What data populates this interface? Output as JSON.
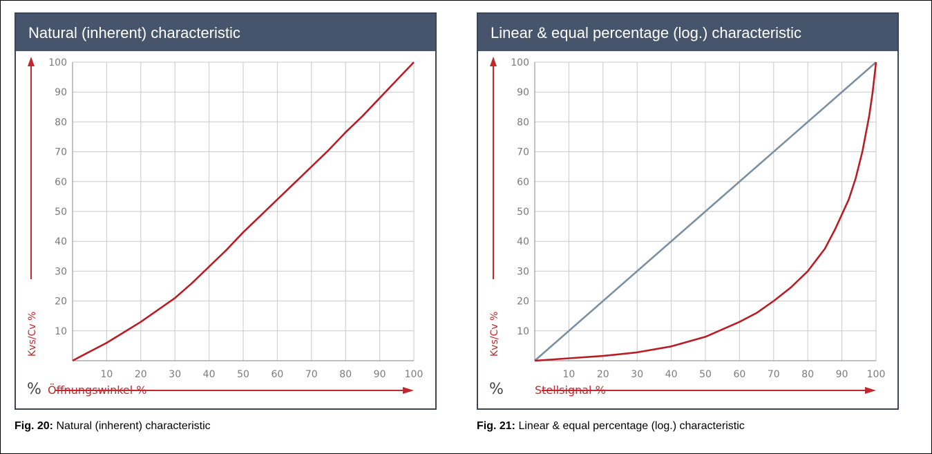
{
  "colors": {
    "header_bg": "#46556b",
    "header_text": "#ffffff",
    "panel_border": "#3a4658",
    "grid": "#c8c8c8",
    "axis_label": "#c0282d",
    "tick_text": "#7a7a7a",
    "curve_red": "#b91c24",
    "curve_grey": "#7a8fa0"
  },
  "figures": [
    {
      "header": "Natural (inherent) characteristic",
      "caption_label": "Fig. 20:",
      "caption_text": " Natural (inherent) characteristic",
      "percent_sign": "%",
      "x_axis_label": "Öffnungswinkel %",
      "y_axis_label": "Kvs/Cv %"
    },
    {
      "header": "Linear & equal percentage (log.) characteristic",
      "caption_label": "Fig. 21:",
      "caption_text": " Linear & equal percentage (log.) characteristic",
      "percent_sign": "%",
      "x_axis_label": "Stellsignal %",
      "y_axis_label": "Kvs/Cv %"
    }
  ],
  "chart_data": [
    {
      "type": "line",
      "title": "Natural (inherent) characteristic",
      "xlabel": "Öffnungswinkel %",
      "ylabel": "Kvs/Cv %",
      "xlim": [
        0,
        100
      ],
      "ylim": [
        0,
        100
      ],
      "x_ticks": [
        10,
        20,
        30,
        40,
        50,
        60,
        70,
        80,
        90,
        100
      ],
      "y_ticks": [
        10,
        20,
        30,
        40,
        50,
        60,
        70,
        80,
        90,
        100
      ],
      "grid": true,
      "series": [
        {
          "color": "#b91c24",
          "x": [
            0,
            5,
            10,
            15,
            20,
            25,
            30,
            35,
            40,
            45,
            50,
            55,
            60,
            65,
            70,
            75,
            80,
            85,
            90,
            95,
            100
          ],
          "y": [
            0,
            3,
            6,
            9.5,
            13,
            17,
            21,
            26,
            31.5,
            37,
            43,
            48.5,
            54,
            59.5,
            65,
            70.5,
            76.5,
            82,
            88,
            94,
            100
          ]
        }
      ]
    },
    {
      "type": "line",
      "title": "Linear & equal percentage (log.) characteristic",
      "xlabel": "Stellsignal %",
      "ylabel": "Kvs/Cv %",
      "xlim": [
        0,
        100
      ],
      "ylim": [
        0,
        100
      ],
      "x_ticks": [
        10,
        20,
        30,
        40,
        50,
        60,
        70,
        80,
        90,
        100
      ],
      "y_ticks": [
        10,
        20,
        30,
        40,
        50,
        60,
        70,
        80,
        90,
        100
      ],
      "grid": true,
      "series": [
        {
          "color": "#7a8fa0",
          "x": [
            0,
            100
          ],
          "y": [
            0,
            100
          ]
        },
        {
          "color": "#b91c24",
          "x": [
            0,
            10,
            20,
            30,
            40,
            50,
            60,
            65,
            70,
            75,
            80,
            85,
            88,
            90,
            92,
            94,
            96,
            98,
            99,
            100
          ],
          "y": [
            0,
            0.8,
            1.6,
            2.8,
            4.8,
            8,
            13,
            16,
            20,
            24.5,
            30,
            37.5,
            44,
            49,
            54,
            61,
            70,
            82,
            90,
            100
          ]
        }
      ]
    }
  ]
}
